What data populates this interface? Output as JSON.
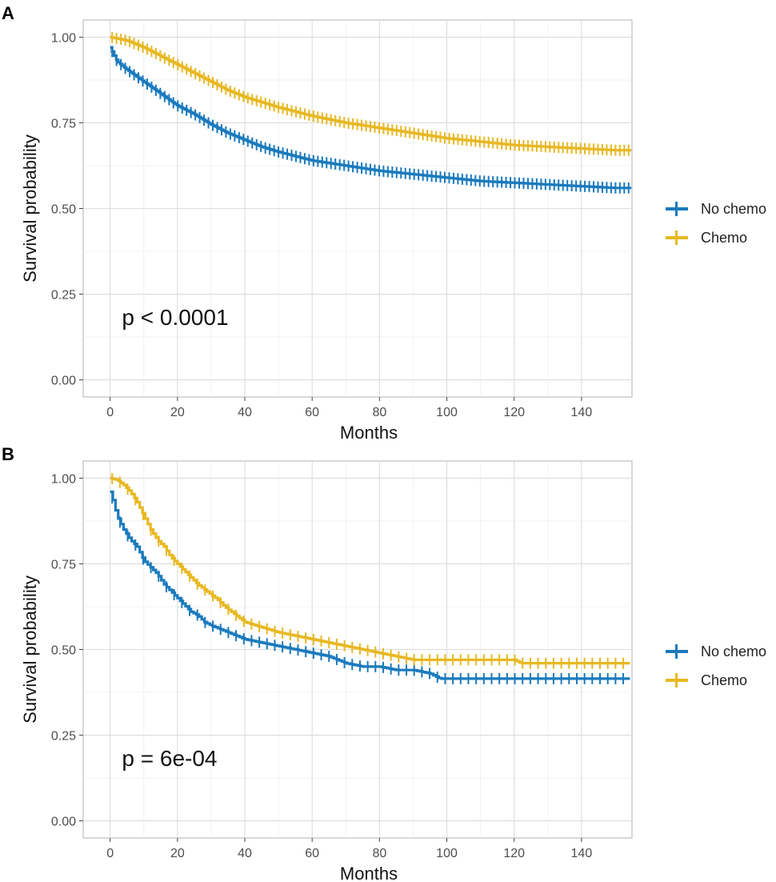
{
  "chart_data": [
    {
      "panel": "A",
      "type": "line",
      "subtype": "kaplan-meier",
      "xlabel": "Months",
      "ylabel": "Survival probability",
      "xlim": [
        -8,
        155
      ],
      "ylim": [
        -0.05,
        1.05
      ],
      "xticks": [
        "0",
        "20",
        "40",
        "60",
        "80",
        "100",
        "120",
        "140"
      ],
      "yticks": [
        "0.00",
        "0.25",
        "0.50",
        "0.75",
        "1.00"
      ],
      "annotation": "p < 0.0001",
      "legend": [
        "No chemo",
        "Chemo"
      ],
      "legend_position": "right",
      "series": [
        {
          "name": "No chemo",
          "color": "#1a7abd",
          "x": [
            0,
            2,
            5,
            10,
            15,
            20,
            25,
            30,
            35,
            40,
            45,
            50,
            60,
            70,
            80,
            90,
            100,
            110,
            120,
            130,
            140,
            150,
            155
          ],
          "y": [
            0.97,
            0.93,
            0.905,
            0.87,
            0.835,
            0.8,
            0.775,
            0.745,
            0.72,
            0.7,
            0.68,
            0.665,
            0.64,
            0.625,
            0.61,
            0.6,
            0.59,
            0.58,
            0.575,
            0.57,
            0.565,
            0.56,
            0.56
          ],
          "censor_interval": 1.3
        },
        {
          "name": "Chemo",
          "color": "#e8b823",
          "x": [
            0,
            5,
            10,
            15,
            20,
            25,
            30,
            35,
            40,
            45,
            50,
            60,
            70,
            80,
            90,
            100,
            110,
            120,
            130,
            140,
            150,
            155
          ],
          "y": [
            1.0,
            0.99,
            0.97,
            0.945,
            0.92,
            0.895,
            0.87,
            0.845,
            0.825,
            0.81,
            0.795,
            0.77,
            0.75,
            0.735,
            0.72,
            0.705,
            0.695,
            0.685,
            0.68,
            0.675,
            0.67,
            0.67
          ],
          "censor_interval": 1.3
        }
      ]
    },
    {
      "panel": "B",
      "type": "line",
      "subtype": "kaplan-meier",
      "xlabel": "Months",
      "ylabel": "Survival probability",
      "xlim": [
        -8,
        155
      ],
      "ylim": [
        -0.05,
        1.05
      ],
      "xticks": [
        "0",
        "20",
        "40",
        "60",
        "80",
        "100",
        "120",
        "140"
      ],
      "yticks": [
        "0.00",
        "0.25",
        "0.50",
        "0.75",
        "1.00"
      ],
      "annotation": "p = 6e-04",
      "legend": [
        "No chemo",
        "Chemo"
      ],
      "legend_position": "right",
      "series": [
        {
          "name": "No chemo",
          "color": "#1a7abd",
          "x": [
            0,
            1,
            2,
            4,
            6,
            8,
            10,
            12,
            14,
            16,
            18,
            20,
            22,
            24,
            26,
            28,
            30,
            35,
            40,
            45,
            50,
            55,
            60,
            65,
            70,
            75,
            80,
            85,
            90,
            95,
            98,
            110,
            125,
            140,
            155
          ],
          "y": [
            0.96,
            0.93,
            0.89,
            0.85,
            0.82,
            0.8,
            0.76,
            0.74,
            0.72,
            0.69,
            0.67,
            0.65,
            0.63,
            0.61,
            0.6,
            0.58,
            0.57,
            0.55,
            0.53,
            0.52,
            0.51,
            0.5,
            0.49,
            0.48,
            0.46,
            0.45,
            0.45,
            0.44,
            0.44,
            0.43,
            0.415,
            0.415,
            0.415,
            0.415,
            0.415
          ],
          "censor_interval": 2.3
        },
        {
          "name": "Chemo",
          "color": "#e8b823",
          "x": [
            0,
            2,
            4,
            6,
            8,
            10,
            12,
            14,
            16,
            18,
            20,
            22,
            24,
            26,
            28,
            30,
            32,
            34,
            36,
            38,
            40,
            45,
            50,
            55,
            60,
            65,
            70,
            75,
            80,
            85,
            90,
            100,
            110,
            120,
            122,
            140,
            155
          ],
          "y": [
            1.0,
            0.995,
            0.98,
            0.96,
            0.93,
            0.89,
            0.85,
            0.82,
            0.8,
            0.77,
            0.75,
            0.73,
            0.71,
            0.69,
            0.675,
            0.66,
            0.645,
            0.625,
            0.61,
            0.595,
            0.58,
            0.565,
            0.55,
            0.54,
            0.53,
            0.52,
            0.51,
            0.5,
            0.49,
            0.48,
            0.47,
            0.47,
            0.47,
            0.47,
            0.46,
            0.46,
            0.46
          ],
          "censor_interval": 2.3
        }
      ]
    }
  ]
}
